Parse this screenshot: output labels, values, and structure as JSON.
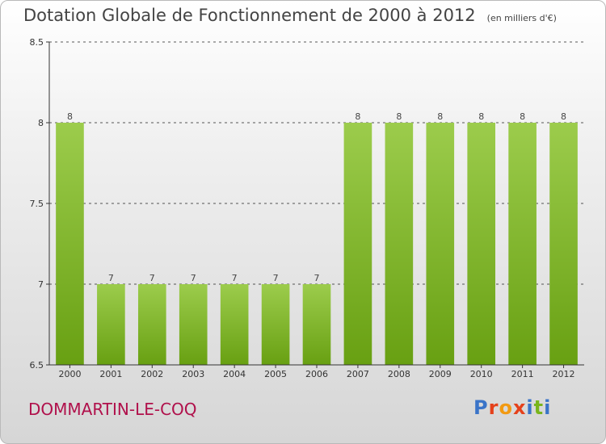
{
  "title": "Dotation Globale de Fonctionnement de 2000 à 2012",
  "unit": "(en milliers d'€)",
  "commune": "DOMMARTIN-LE-COQ",
  "logo": {
    "text": "Proxiti",
    "letter_colors": [
      "#3a74c8",
      "#e5411b",
      "#f29a12",
      "#e5411b",
      "#3a74c8",
      "#79b51c",
      "#3a74c8"
    ]
  },
  "colors": {
    "bar_light": "#9ccc4c",
    "bar_dark": "#68a012",
    "grid": "#222222",
    "commune": "#b0104b"
  },
  "chart_data": {
    "type": "bar",
    "categories": [
      "2000",
      "2001",
      "2002",
      "2003",
      "2004",
      "2005",
      "2006",
      "2007",
      "2008",
      "2009",
      "2010",
      "2011",
      "2012"
    ],
    "values": [
      8,
      7,
      7,
      7,
      7,
      7,
      7,
      8,
      8,
      8,
      8,
      8,
      8
    ],
    "data_labels": [
      "8",
      "7",
      "7",
      "7",
      "7",
      "7",
      "7",
      "8",
      "8",
      "8",
      "8",
      "8",
      "8"
    ],
    "yticks": [
      6.5,
      7,
      7.5,
      8,
      8.5
    ],
    "ylim": [
      6.5,
      8.5
    ],
    "grid": "horizontal dashed",
    "legend": "none"
  }
}
